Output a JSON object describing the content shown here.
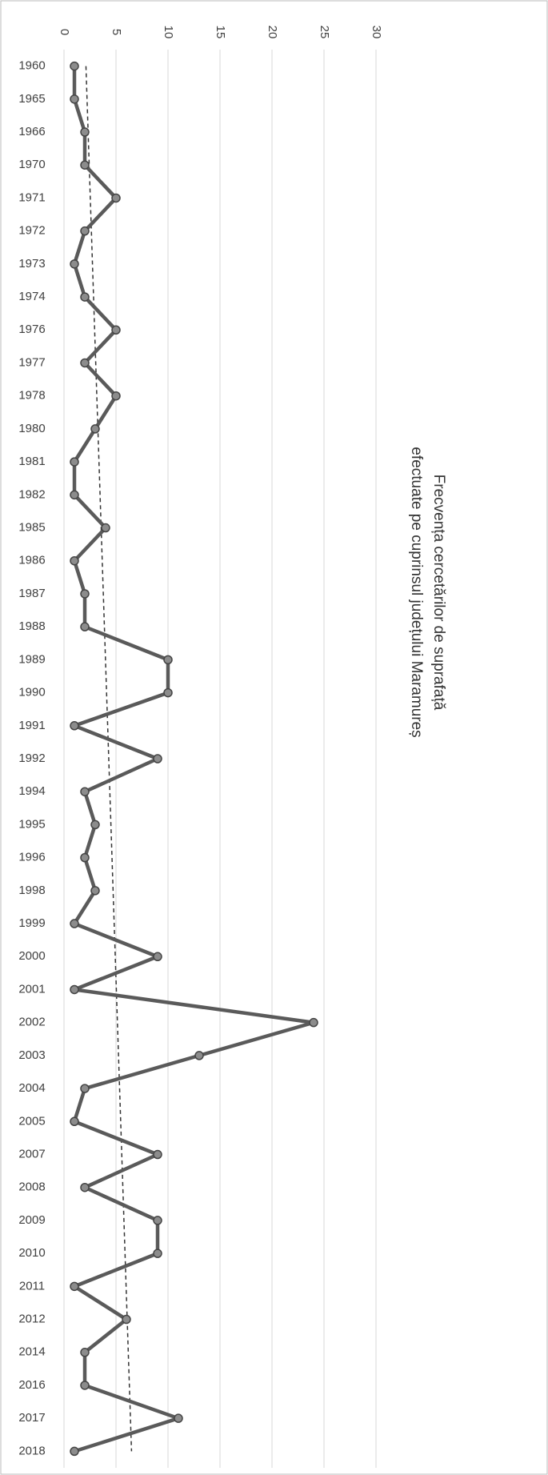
{
  "chart_data": {
    "type": "line",
    "orientation": "horizontal",
    "title": [
      "Frecvența cercetărilor de suprafață",
      "efectuate pe cuprinsul județului Maramureș"
    ],
    "categories": [
      "1960",
      "1965",
      "1966",
      "1970",
      "1971",
      "1972",
      "1973",
      "1974",
      "1976",
      "1977",
      "1978",
      "1980",
      "1981",
      "1982",
      "1985",
      "1986",
      "1987",
      "1988",
      "1989",
      "1990",
      "1991",
      "1992",
      "1994",
      "1995",
      "1996",
      "1998",
      "1999",
      "2000",
      "2001",
      "2002",
      "2003",
      "2004",
      "2005",
      "2007",
      "2008",
      "2009",
      "2010",
      "2011",
      "2012",
      "2014",
      "2016",
      "2017",
      "2018"
    ],
    "values": [
      1,
      1,
      2,
      2,
      5,
      2,
      1,
      2,
      5,
      2,
      5,
      3,
      1,
      1,
      4,
      1,
      2,
      2,
      10,
      10,
      1,
      9,
      2,
      3,
      2,
      3,
      1,
      9,
      1,
      24,
      13,
      2,
      1,
      9,
      2,
      9,
      9,
      1,
      6,
      2,
      2,
      11,
      1
    ],
    "color": "#5a5a5a",
    "marker_color": "#8c8c8c",
    "ylim": [
      0,
      30
    ],
    "yticks": [
      0,
      5,
      10,
      15,
      20,
      25,
      30
    ],
    "grid": true,
    "trendline": true
  }
}
